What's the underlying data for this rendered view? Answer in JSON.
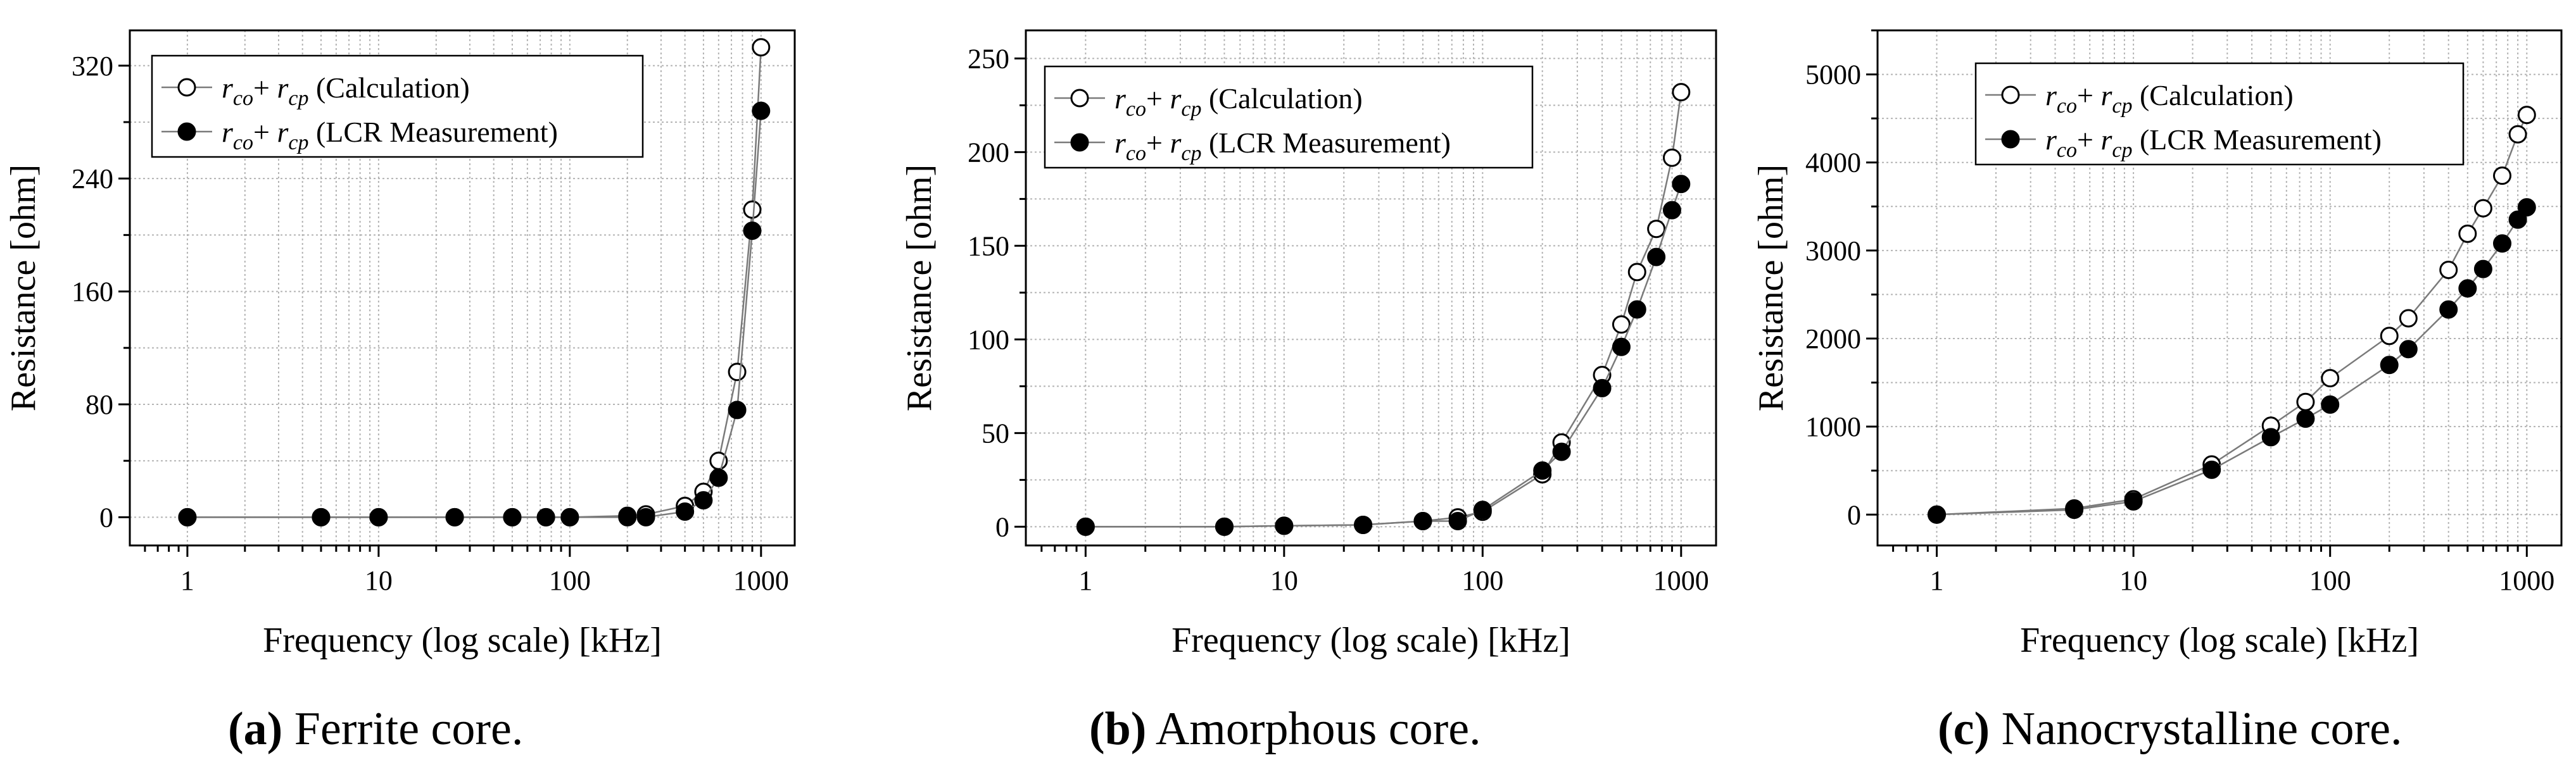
{
  "chart_data": [
    {
      "type": "line",
      "title": "",
      "xlabel": "Frequency (log scale) [kHz]",
      "ylabel": "Resistance [ohm]",
      "xscale": "log",
      "xlim": [
        0.5,
        1500
      ],
      "ylim": [
        -20,
        345
      ],
      "x_ticks": [
        1,
        10,
        100,
        1000
      ],
      "x_tick_labels": [
        "1",
        "10",
        "100",
        "1000"
      ],
      "y_ticks": [
        0,
        80,
        160,
        240,
        320
      ],
      "y_tick_labels": [
        "0",
        "80",
        "160",
        "240",
        "320"
      ],
      "grid": true,
      "legend_position": "top-left",
      "series": [
        {
          "name_main": "r",
          "name_sub1": "co",
          "name_sub2": "cp",
          "name_suffix": " (Calculation)",
          "marker": "open",
          "x": [
            1,
            5,
            10,
            25,
            50,
            75,
            100,
            200,
            250,
            400,
            500,
            600,
            750,
            900,
            1000
          ],
          "y": [
            0,
            0,
            0,
            0,
            0,
            0,
            0,
            1,
            2,
            8,
            18,
            40,
            103,
            218,
            333
          ]
        },
        {
          "name_main": "r",
          "name_sub1": "co",
          "name_sub2": "cp",
          "name_suffix": " (LCR Measurement)",
          "marker": "filled",
          "x": [
            1,
            5,
            10,
            25,
            50,
            75,
            100,
            200,
            250,
            400,
            500,
            600,
            750,
            900,
            1000
          ],
          "y": [
            0,
            0,
            0,
            0,
            0,
            0,
            0,
            0,
            0,
            4,
            12,
            28,
            76,
            203,
            288
          ]
        }
      ],
      "caption_label": "(a)",
      "caption_text": " Ferrite core."
    },
    {
      "type": "line",
      "title": "",
      "xlabel": "Frequency (log scale) [kHz]",
      "ylabel": "Resistance [ohm]",
      "xscale": "log",
      "xlim": [
        0.5,
        1500
      ],
      "ylim": [
        -10,
        265
      ],
      "x_ticks": [
        1,
        10,
        100,
        1000
      ],
      "x_tick_labels": [
        "1",
        "10",
        "100",
        "1000"
      ],
      "y_ticks": [
        0,
        50,
        100,
        150,
        200,
        250
      ],
      "y_tick_labels": [
        "0",
        "50",
        "100",
        "150",
        "200",
        "250"
      ],
      "grid": true,
      "legend_position": "top-left",
      "series": [
        {
          "name_main": "r",
          "name_sub1": "co",
          "name_sub2": "cp",
          "name_suffix": " (Calculation)",
          "marker": "open",
          "x": [
            1,
            5,
            10,
            25,
            50,
            75,
            100,
            200,
            250,
            400,
            500,
            600,
            750,
            900,
            1000
          ],
          "y": [
            0,
            0,
            0.5,
            1,
            3,
            5,
            8,
            28,
            45,
            81,
            108,
            136,
            159,
            197,
            232
          ]
        },
        {
          "name_main": "r",
          "name_sub1": "co",
          "name_sub2": "cp",
          "name_suffix": " (LCR Measurement)",
          "marker": "filled",
          "x": [
            1,
            5,
            10,
            25,
            50,
            75,
            100,
            200,
            250,
            400,
            500,
            600,
            750,
            900,
            1000
          ],
          "y": [
            0,
            0,
            0.5,
            1,
            3,
            3,
            9,
            30,
            40,
            74,
            96,
            116,
            144,
            169,
            183
          ]
        }
      ],
      "caption_label": "(b)",
      "caption_text": " Amorphous core."
    },
    {
      "type": "line",
      "title": "",
      "xlabel": "Frequency (log scale) [kHz]",
      "ylabel": "Resistance [ohm]",
      "xscale": "log",
      "xlim": [
        0.5,
        1500
      ],
      "ylim": [
        -350,
        5500
      ],
      "x_ticks": [
        1,
        10,
        100,
        1000
      ],
      "x_tick_labels": [
        "1",
        "10",
        "100",
        "1000"
      ],
      "y_ticks": [
        0,
        1000,
        2000,
        3000,
        4000,
        5000
      ],
      "y_tick_labels": [
        "0",
        "1000",
        "2000",
        "3000",
        "4000",
        "5000"
      ],
      "grid": true,
      "legend_position": "top-left",
      "series": [
        {
          "name_main": "r",
          "name_sub1": "co",
          "name_sub2": "cp",
          "name_suffix": " (Calculation)",
          "marker": "open",
          "x": [
            1,
            5,
            10,
            25,
            50,
            75,
            100,
            200,
            250,
            400,
            500,
            600,
            750,
            900,
            1000
          ],
          "y": [
            0,
            70,
            175,
            570,
            1010,
            1280,
            1550,
            2030,
            2230,
            2780,
            3190,
            3480,
            3850,
            4320,
            4540
          ]
        },
        {
          "name_main": "r",
          "name_sub1": "co",
          "name_sub2": "cp",
          "name_suffix": " (LCR Measurement)",
          "marker": "filled",
          "x": [
            1,
            5,
            10,
            25,
            50,
            75,
            100,
            200,
            250,
            400,
            500,
            600,
            750,
            900,
            1000
          ],
          "y": [
            0,
            55,
            150,
            510,
            880,
            1090,
            1250,
            1700,
            1880,
            2330,
            2570,
            2790,
            3080,
            3350,
            3490
          ]
        }
      ],
      "caption_label": "(c)",
      "caption_text": " Nanocrystalline core."
    }
  ]
}
